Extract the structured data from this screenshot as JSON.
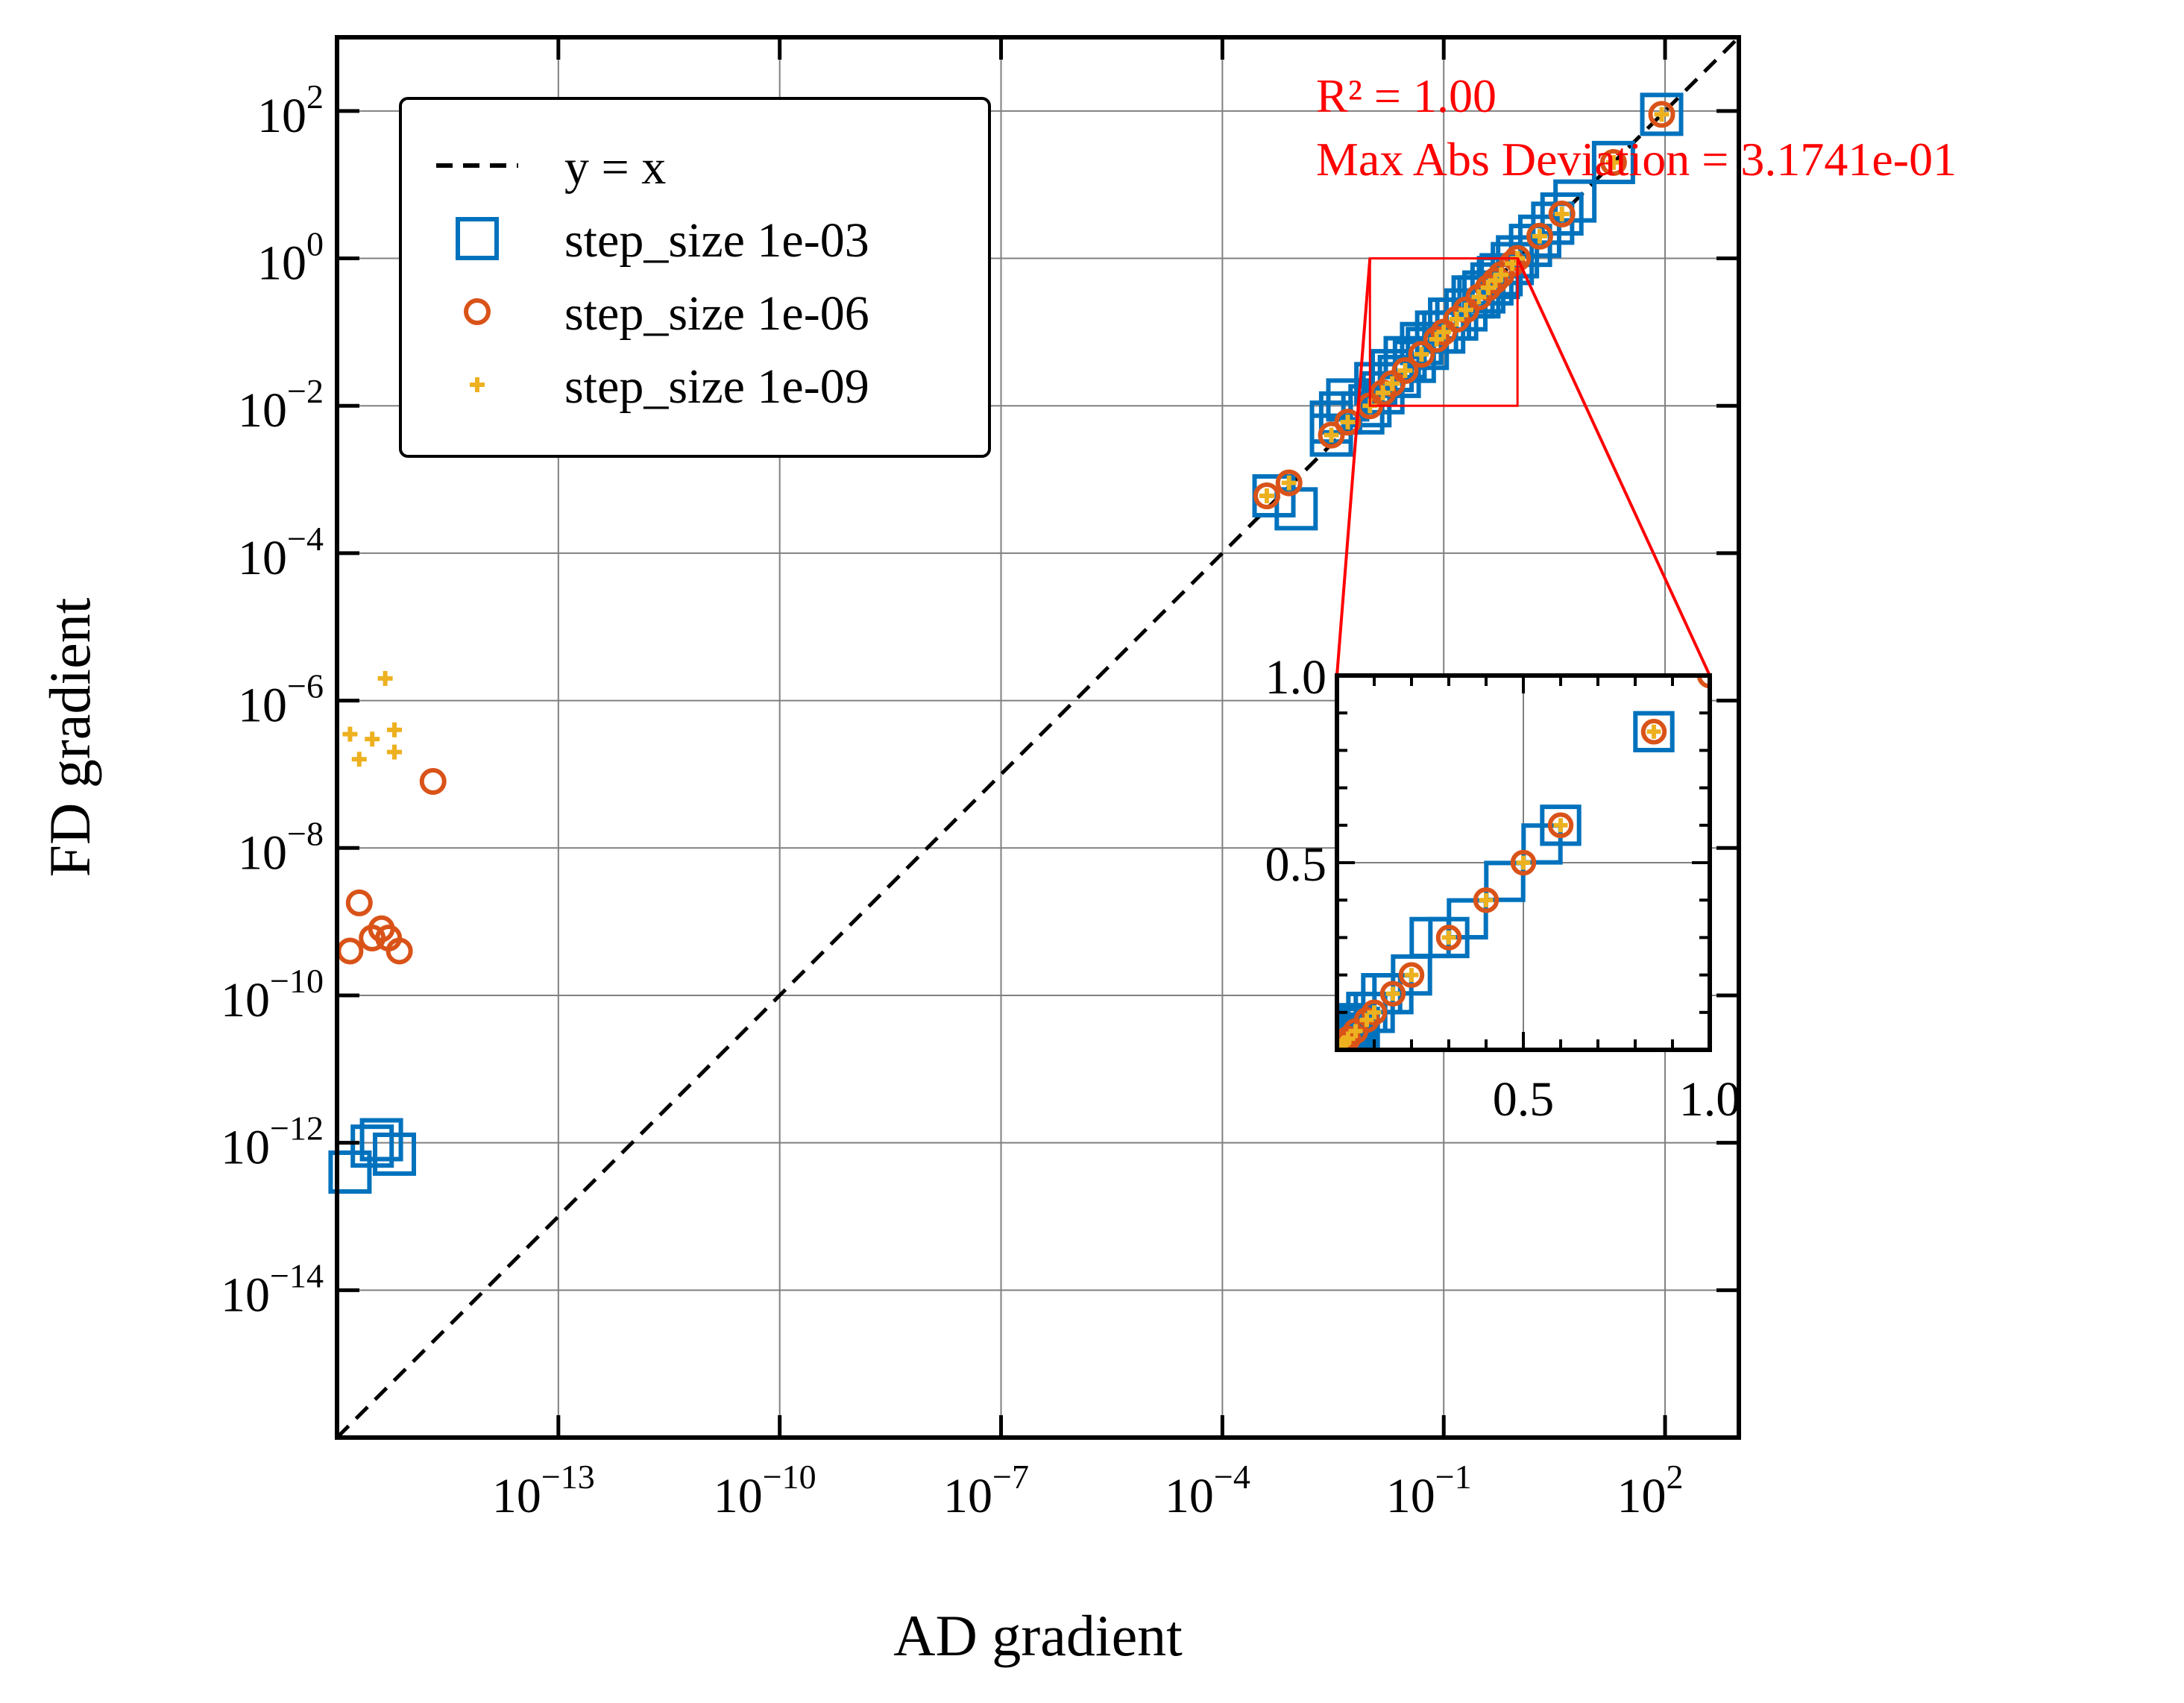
{
  "chart_data": {
    "type": "scatter",
    "title": "",
    "xlabel": "AD gradient",
    "ylabel": "FD gradient",
    "xscale": "log",
    "yscale": "log",
    "xlim": [
      1e-16,
      1000
    ],
    "ylim": [
      1e-16,
      1000
    ],
    "x_tick_labels": [
      {
        "value": 1e-13,
        "base": "10",
        "exp": "−13"
      },
      {
        "value": 1e-10,
        "base": "10",
        "exp": "−10"
      },
      {
        "value": 1e-07,
        "base": "10",
        "exp": "−7"
      },
      {
        "value": 0.0001,
        "base": "10",
        "exp": "−4"
      },
      {
        "value": 0.1,
        "base": "10",
        "exp": "−1"
      },
      {
        "value": 100,
        "base": "10",
        "exp": "2"
      }
    ],
    "y_tick_labels": [
      {
        "value": 1e-14,
        "base": "10",
        "exp": "−14"
      },
      {
        "value": 1e-12,
        "base": "10",
        "exp": "−12"
      },
      {
        "value": 1e-10,
        "base": "10",
        "exp": "−10"
      },
      {
        "value": 1e-08,
        "base": "10",
        "exp": "−8"
      },
      {
        "value": 1e-06,
        "base": "10",
        "exp": "−6"
      },
      {
        "value": 0.0001,
        "base": "10",
        "exp": "−4"
      },
      {
        "value": 0.01,
        "base": "10",
        "exp": "−2"
      },
      {
        "value": 1,
        "base": "10",
        "exp": "0"
      },
      {
        "value": 100,
        "base": "10",
        "exp": "2"
      }
    ],
    "grid": true,
    "legend": {
      "position": "top-left",
      "entries": [
        {
          "label": "y = x",
          "marker": "dashed-line",
          "color": "#000000"
        },
        {
          "label": "step_size 1e-03",
          "marker": "square",
          "color": "#0072bd"
        },
        {
          "label": "step_size 1e-06",
          "marker": "circle",
          "color": "#d95319"
        },
        {
          "label": "step_size 1e-09",
          "marker": "plus",
          "color": "#edb120"
        }
      ]
    },
    "reference_line": {
      "label": "y = x",
      "color": "#000000",
      "style": "dashed"
    },
    "annotation": {
      "lines": [
        "R² = 1.00",
        "Max Abs Deviation = 3.1741e-01"
      ],
      "color": "#ff0000"
    },
    "series": [
      {
        "name": "step_size 1e-03",
        "marker": "square",
        "color": "#0072bd",
        "points": [
          [
            1.5e-16,
            4e-13
          ],
          [
            3e-16,
            9e-13
          ],
          [
            4e-16,
            1.1e-12
          ],
          [
            6e-16,
            7e-13
          ],
          [
            0.0005,
            0.0006
          ],
          [
            0.001,
            0.0004
          ],
          [
            0.003,
            0.004
          ],
          [
            0.003,
            0.006
          ],
          [
            0.004,
            0.008
          ],
          [
            0.005,
            0.012
          ],
          [
            0.008,
            0.008
          ],
          [
            0.01,
            0.01
          ],
          [
            0.012,
            0.02
          ],
          [
            0.015,
            0.015
          ],
          [
            0.02,
            0.03
          ],
          [
            0.025,
            0.025
          ],
          [
            0.03,
            0.045
          ],
          [
            0.04,
            0.04
          ],
          [
            0.05,
            0.07
          ],
          [
            0.06,
            0.06
          ],
          [
            0.08,
            0.1
          ],
          [
            0.1,
            0.1
          ],
          [
            0.12,
            0.15
          ],
          [
            0.15,
            0.15
          ],
          [
            0.2,
            0.2
          ],
          [
            0.25,
            0.3
          ],
          [
            0.3,
            0.3
          ],
          [
            0.35,
            0.35
          ],
          [
            0.45,
            0.45
          ],
          [
            0.55,
            0.55
          ],
          [
            0.6,
            0.6
          ],
          [
            0.85,
            0.85
          ],
          [
            1,
            1.05
          ],
          [
            1.5,
            1.5
          ],
          [
            2,
            2
          ],
          [
            3,
            3
          ],
          [
            4,
            4
          ],
          [
            6,
            6
          ],
          [
            20,
            20
          ],
          [
            90,
            90
          ]
        ]
      },
      {
        "name": "step_size 1e-06",
        "marker": "circle",
        "color": "#d95319",
        "points": [
          [
            1.5e-16,
            4e-10
          ],
          [
            2e-16,
            1.8e-09
          ],
          [
            3e-16,
            6e-10
          ],
          [
            4e-16,
            8e-10
          ],
          [
            5e-16,
            6e-10
          ],
          [
            7e-16,
            4e-10
          ],
          [
            2e-15,
            8e-08
          ],
          [
            0.0004,
            0.0006
          ],
          [
            0.0008,
            0.0009
          ],
          [
            0.003,
            0.004
          ],
          [
            0.005,
            0.006
          ],
          [
            0.01,
            0.01
          ],
          [
            0.015,
            0.015
          ],
          [
            0.02,
            0.02
          ],
          [
            0.03,
            0.03
          ],
          [
            0.05,
            0.05
          ],
          [
            0.08,
            0.08
          ],
          [
            0.1,
            0.1
          ],
          [
            0.15,
            0.15
          ],
          [
            0.2,
            0.2
          ],
          [
            0.3,
            0.3
          ],
          [
            0.4,
            0.4
          ],
          [
            0.5,
            0.5
          ],
          [
            0.6,
            0.6
          ],
          [
            0.85,
            0.85
          ],
          [
            1,
            1
          ],
          [
            2,
            2
          ],
          [
            4,
            4
          ],
          [
            20,
            20
          ],
          [
            90,
            90
          ]
        ]
      },
      {
        "name": "step_size 1e-09",
        "marker": "plus",
        "color": "#edb120",
        "points": [
          [
            1.5e-16,
            3.5e-07
          ],
          [
            2e-16,
            1.6e-07
          ],
          [
            3e-16,
            3e-07
          ],
          [
            4.5e-16,
            2e-06
          ],
          [
            6e-16,
            4e-07
          ],
          [
            6e-16,
            2e-07
          ],
          [
            0.0004,
            0.0006
          ],
          [
            0.0008,
            0.0009
          ],
          [
            0.003,
            0.004
          ],
          [
            0.005,
            0.006
          ],
          [
            0.01,
            0.01
          ],
          [
            0.015,
            0.015
          ],
          [
            0.02,
            0.02
          ],
          [
            0.03,
            0.03
          ],
          [
            0.05,
            0.05
          ],
          [
            0.08,
            0.08
          ],
          [
            0.1,
            0.1
          ],
          [
            0.15,
            0.15
          ],
          [
            0.2,
            0.2
          ],
          [
            0.3,
            0.3
          ],
          [
            0.4,
            0.4
          ],
          [
            0.5,
            0.5
          ],
          [
            0.6,
            0.6
          ],
          [
            0.85,
            0.85
          ],
          [
            1,
            1
          ],
          [
            2,
            2
          ],
          [
            4,
            4
          ],
          [
            20,
            20
          ],
          [
            90,
            90
          ]
        ]
      }
    ],
    "inset": {
      "xscale": "linear",
      "yscale": "linear",
      "xlim": [
        0,
        1
      ],
      "ylim": [
        0,
        1
      ],
      "x_tick_labels": [
        "0.5",
        "1.0"
      ],
      "y_tick_labels": [
        "0.5",
        "1.0"
      ],
      "zoom_region": {
        "xlim": [
          0.01,
          1
        ],
        "ylim": [
          0.01,
          1
        ]
      },
      "indicator_color": "#ff0000"
    }
  }
}
